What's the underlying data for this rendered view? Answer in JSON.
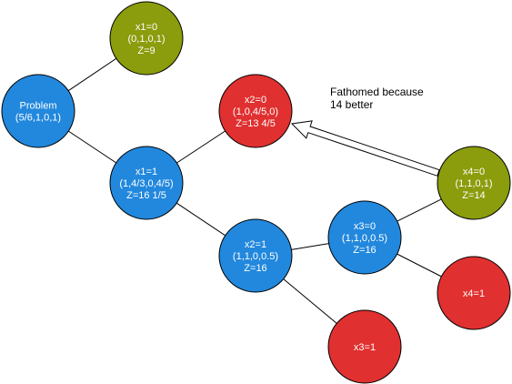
{
  "colors": {
    "blue": "#2288dd",
    "red": "#e03030",
    "olive": "#8b9c0c",
    "stroke": "#000000",
    "edge": "#000000"
  },
  "nodes": [
    {
      "id": "x1-0",
      "color": "olive",
      "lines": [
        "x1=0",
        "(0,1,0,1)",
        "Z=9"
      ]
    },
    {
      "id": "problem",
      "color": "blue",
      "lines": [
        "Problem",
        "(5/6,1,0,1)"
      ]
    },
    {
      "id": "x2-0",
      "color": "red",
      "lines": [
        "x2=0",
        "(1,0,4/5,0)",
        "Z=13 4/5"
      ]
    },
    {
      "id": "x1-1",
      "color": "blue",
      "lines": [
        "x1=1",
        "(1,4/3,0,4/5)",
        "Z=16 1/5"
      ]
    },
    {
      "id": "x4-0",
      "color": "olive",
      "lines": [
        "x4=0",
        "(1,1,0,1)",
        "Z=14"
      ]
    },
    {
      "id": "x3-0",
      "color": "blue",
      "lines": [
        "x3=0",
        "(1,1,0,0.5)",
        "Z=16"
      ]
    },
    {
      "id": "x2-1",
      "color": "blue",
      "lines": [
        "x2=1",
        "(1,1,0,0.5)",
        "Z=16"
      ]
    },
    {
      "id": "x4-1",
      "color": "red",
      "lines": [
        "x4=1"
      ]
    },
    {
      "id": "x3-1",
      "color": "red",
      "lines": [
        "x3=1"
      ]
    }
  ],
  "edges": [
    [
      "problem",
      "x1-0"
    ],
    [
      "problem",
      "x1-1"
    ],
    [
      "x1-1",
      "x2-0"
    ],
    [
      "x1-1",
      "x2-1"
    ],
    [
      "x2-1",
      "x3-0"
    ],
    [
      "x2-1",
      "x3-1"
    ],
    [
      "x3-0",
      "x4-0"
    ],
    [
      "x3-0",
      "x4-1"
    ]
  ],
  "annotation": {
    "lines": [
      "Fathomed because",
      "14 better"
    ],
    "arrow_from": "x4-0",
    "arrow_to": "x2-0"
  }
}
